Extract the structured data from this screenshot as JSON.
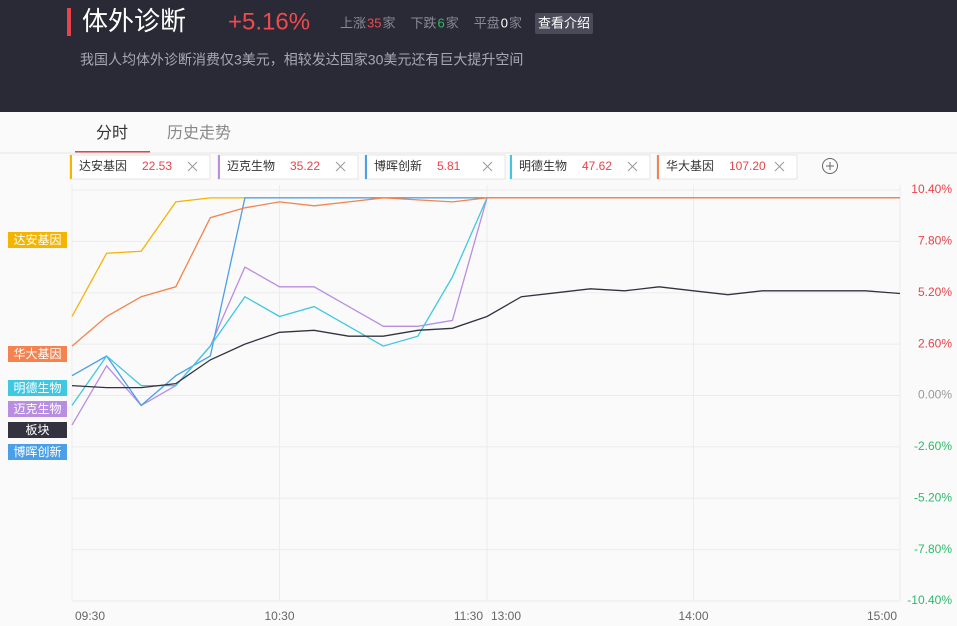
{
  "header": {
    "title": "体外诊断",
    "change": "+5.16%",
    "stats": [
      {
        "label": "上涨",
        "count": "35",
        "unit": "家"
      },
      {
        "label": "下跌",
        "count": "6",
        "unit": "家"
      },
      {
        "label": "平盘",
        "count": "0",
        "unit": "家"
      }
    ],
    "button": "查看介绍",
    "subtitle": "我国人均体外诊断消费仅3美元，相较发达国家30美元还有巨大提升空间"
  },
  "tabs": [
    "分时",
    "历史走势"
  ],
  "chart_data": {
    "type": "line",
    "x": [
      "09:30",
      "09:40",
      "09:50",
      "10:00",
      "10:10",
      "10:20",
      "10:30",
      "10:40",
      "10:50",
      "11:00",
      "11:10",
      "11:20",
      "11:30",
      "13:10",
      "13:20",
      "13:30",
      "13:40",
      "13:50",
      "14:00",
      "14:10",
      "14:20",
      "14:30",
      "14:40",
      "14:50",
      "15:00"
    ],
    "xlim": [
      "09:30",
      "15:00"
    ],
    "xticks": [
      "09:30",
      "10:30",
      "11:30",
      "13:00",
      "14:00",
      "15:00"
    ],
    "ylim": [
      -10.4,
      10.4
    ],
    "yticks": [
      {
        "value": 10.4,
        "label": "10.40%"
      },
      {
        "value": 7.8,
        "label": "7.80%"
      },
      {
        "value": 5.2,
        "label": "5.20%"
      },
      {
        "value": 2.6,
        "label": "2.60%"
      },
      {
        "value": 0,
        "label": "0.00%"
      },
      {
        "value": -2.6,
        "label": "-2.60%"
      },
      {
        "value": -5.2,
        "label": "-5.20%"
      },
      {
        "value": -7.8,
        "label": "-7.80%"
      },
      {
        "value": -10.4,
        "label": "-10.40%"
      }
    ],
    "grid": true,
    "series": [
      {
        "name": "达安基因",
        "price": "22.53",
        "color": "#f5b400",
        "values": [
          4.0,
          7.2,
          7.3,
          9.8,
          10,
          10,
          10,
          10,
          10,
          10,
          10,
          10,
          10,
          10,
          10,
          10,
          10,
          10,
          10,
          10,
          10,
          10,
          10,
          10,
          10
        ]
      },
      {
        "name": "迈克生物",
        "price": "35.22",
        "color": "#b98ee2",
        "values": [
          -1.5,
          1.5,
          -0.5,
          0.5,
          2.5,
          6.5,
          5.5,
          5.5,
          4.5,
          3.5,
          3.5,
          3.8,
          10,
          10,
          10,
          10,
          10,
          10,
          10,
          10,
          10,
          10,
          10,
          10,
          10
        ]
      },
      {
        "name": "博晖创新",
        "price": "5.81",
        "color": "#4a9fe8",
        "values": [
          1.0,
          2.0,
          -0.5,
          1.0,
          2.0,
          10,
          10,
          10,
          10,
          10,
          10,
          10,
          10,
          10,
          10,
          10,
          10,
          10,
          10,
          10,
          10,
          10,
          10,
          10,
          10
        ]
      },
      {
        "name": "明德生物",
        "price": "47.62",
        "color": "#3fc8e0",
        "values": [
          -0.5,
          2.0,
          0.5,
          0.5,
          2.5,
          5.0,
          4.0,
          4.5,
          3.5,
          2.5,
          3.0,
          6.0,
          10,
          10,
          10,
          10,
          10,
          10,
          10,
          10,
          10,
          10,
          10,
          10,
          10
        ]
      },
      {
        "name": "华大基因",
        "price": "107.20",
        "color": "#f5834f",
        "values": [
          2.5,
          4.0,
          5.0,
          5.5,
          9.0,
          9.5,
          9.8,
          9.6,
          9.8,
          10,
          9.9,
          9.8,
          10,
          10,
          10,
          10,
          10,
          10,
          10,
          10,
          10,
          10,
          10,
          10,
          10
        ]
      },
      {
        "name": "板块",
        "color": "#333340",
        "values": [
          0.5,
          0.4,
          0.4,
          0.6,
          1.8,
          2.6,
          3.2,
          3.3,
          3.0,
          3.0,
          3.3,
          3.4,
          4.0,
          5.0,
          5.2,
          5.4,
          5.3,
          5.5,
          5.3,
          5.1,
          5.3,
          5.3,
          5.3,
          5.3,
          5.16
        ]
      }
    ]
  }
}
